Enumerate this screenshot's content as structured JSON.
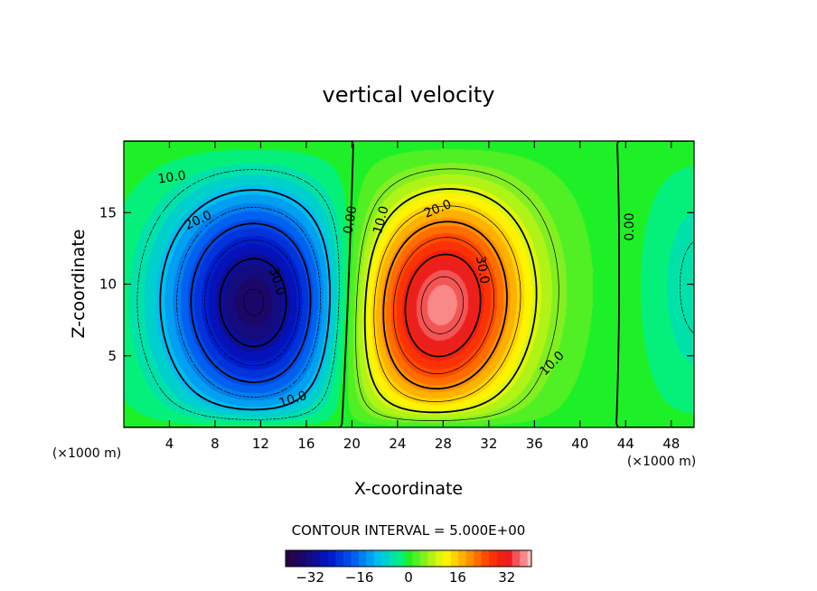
{
  "chart_data": {
    "type": "heatmap",
    "title": "vertical velocity",
    "xlabel": "X-coordinate",
    "ylabel": "Z-coordinate",
    "x_unit": "(×1000 m)",
    "z_unit": "(×1000 m)",
    "xlim": [
      0,
      50
    ],
    "ylim": [
      0,
      20
    ],
    "x_ticks": [
      4,
      8,
      12,
      16,
      20,
      24,
      28,
      32,
      36,
      40,
      44,
      48
    ],
    "y_ticks": [
      5,
      10,
      15
    ],
    "contour_interval_text": "CONTOUR INTERVAL = 5.000E+00",
    "contour_interval": 5,
    "colorbar": {
      "range": [
        -40,
        40
      ],
      "ticks": [
        "−32",
        "−16",
        "0",
        "16",
        "32"
      ],
      "tick_values": [
        -32,
        -16,
        0,
        16,
        32
      ]
    },
    "features": [
      {
        "name": "downdraft",
        "center_x": 11.5,
        "center_z": 8.5,
        "peak": -36
      },
      {
        "name": "updraft",
        "center_x": 27.5,
        "center_z": 8,
        "peak": 38
      },
      {
        "name": "right-edge downdraft",
        "center_x": 50,
        "center_z": 10,
        "peak": -5
      }
    ],
    "contour_labels": [
      {
        "text": "10.0",
        "x": 4.2,
        "z": 17.5,
        "angle": -8
      },
      {
        "text": "20.0",
        "x": 6.5,
        "z": 14.5,
        "angle": -25
      },
      {
        "text": "30.0",
        "x": 13.5,
        "z": 10.2,
        "angle": 72
      },
      {
        "text": "10.0",
        "x": 14.8,
        "z": 2.0,
        "angle": -18
      },
      {
        "text": "0.00",
        "x": 19.8,
        "z": 14.5,
        "angle": -80
      },
      {
        "text": "10.0",
        "x": 22.5,
        "z": 14.5,
        "angle": -75
      },
      {
        "text": "20.0",
        "x": 27.5,
        "z": 15.3,
        "angle": -22
      },
      {
        "text": "30.0",
        "x": 31.5,
        "z": 11.0,
        "angle": 80
      },
      {
        "text": "10.0",
        "x": 37.5,
        "z": 4.5,
        "angle": -45
      },
      {
        "text": "0.00",
        "x": 44.3,
        "z": 14.0,
        "angle": -90
      }
    ]
  }
}
